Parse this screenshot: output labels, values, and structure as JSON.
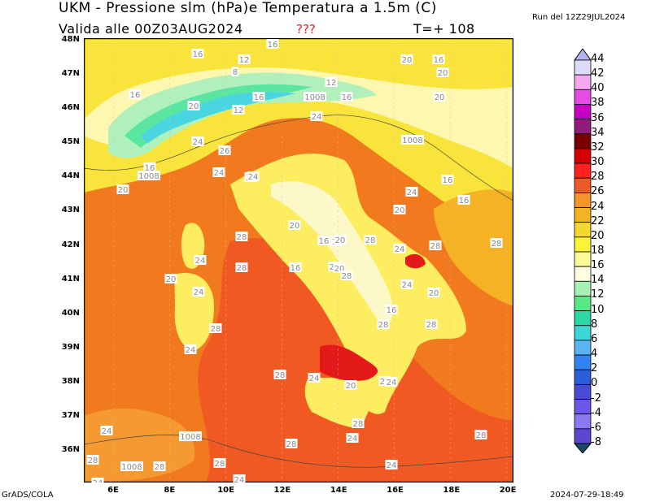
{
  "header": {
    "title": "UKM - Pressione slm (hPa)e Temperatura a 1.5m (C)",
    "validity": "Valida alle 00Z03AUG2024",
    "flag": "???",
    "forecast_step": "T=+ 108",
    "run": "Run del 12Z29JUL2024"
  },
  "footer": {
    "software": "GrADS/COLA",
    "timestamp": "2024-07-29-18:49"
  },
  "map": {
    "lat_ticks": [
      "48N",
      "47N",
      "46N",
      "45N",
      "44N",
      "43N",
      "42N",
      "41N",
      "40N",
      "39N",
      "38N",
      "37N",
      "36N"
    ],
    "lon_ticks": [
      "6E",
      "8E",
      "10E",
      "12E",
      "14E",
      "16E",
      "18E",
      "20E"
    ],
    "contour_labels": [
      {
        "t": "16"
      },
      {
        "t": "12"
      },
      {
        "t": "8"
      },
      {
        "t": "16"
      },
      {
        "t": "12"
      },
      {
        "t": "16"
      },
      {
        "t": "1008"
      },
      {
        "t": "16"
      },
      {
        "t": "12"
      },
      {
        "t": "16"
      },
      {
        "t": "20"
      },
      {
        "t": "24"
      },
      {
        "t": "20"
      },
      {
        "t": "16"
      },
      {
        "t": "20"
      },
      {
        "t": "20"
      },
      {
        "t": "1008"
      },
      {
        "t": "24"
      },
      {
        "t": "20"
      },
      {
        "t": "16"
      },
      {
        "t": "16"
      },
      {
        "t": "24"
      },
      {
        "t": "26"
      },
      {
        "t": "16"
      },
      {
        "t": "1008"
      },
      {
        "t": "20"
      },
      {
        "t": "24"
      },
      {
        "t": "20"
      },
      {
        "t": "24"
      },
      {
        "t": "20"
      },
      {
        "t": "16"
      },
      {
        "t": "16"
      },
      {
        "t": "20"
      },
      {
        "t": "28"
      },
      {
        "t": "20"
      },
      {
        "t": "16"
      },
      {
        "t": "28"
      },
      {
        "t": "28"
      },
      {
        "t": "24"
      },
      {
        "t": "20"
      },
      {
        "t": "24"
      },
      {
        "t": "20"
      },
      {
        "t": "28"
      },
      {
        "t": "24"
      },
      {
        "t": "28"
      },
      {
        "t": "24"
      },
      {
        "t": "20"
      },
      {
        "t": "28"
      },
      {
        "t": "16"
      },
      {
        "t": "28"
      },
      {
        "t": "28"
      },
      {
        "t": "28"
      },
      {
        "t": "24"
      },
      {
        "t": "28"
      },
      {
        "t": "24"
      },
      {
        "t": "20"
      },
      {
        "t": "24"
      },
      {
        "t": "24"
      },
      {
        "t": "28"
      },
      {
        "t": "24"
      },
      {
        "t": "24"
      },
      {
        "t": "1008"
      },
      {
        "t": "28"
      },
      {
        "t": "28"
      },
      {
        "t": "28"
      },
      {
        "t": "24"
      },
      {
        "t": "24"
      },
      {
        "t": "28"
      },
      {
        "t": "1008"
      },
      {
        "t": "28"
      },
      {
        "t": "24"
      }
    ]
  },
  "colorbar": {
    "labels": [
      "44",
      "42",
      "40",
      "38",
      "36",
      "34",
      "32",
      "30",
      "28",
      "26",
      "24",
      "22",
      "20",
      "18",
      "16",
      "14",
      "12",
      "10",
      "8",
      "6",
      "4",
      "2",
      "0",
      "-2",
      "-4",
      "-6",
      "-8"
    ],
    "colors": [
      "#dcdcf8",
      "#f5a8f2",
      "#e84ae6",
      "#c500c5",
      "#8e1c7a",
      "#7a0000",
      "#d40000",
      "#ff2020",
      "#f05a28",
      "#f59428",
      "#f4b224",
      "#f4d82e",
      "#f8f43c",
      "#fafa96",
      "#fefee0",
      "#a8f0b4",
      "#5ae886",
      "#2ed8a6",
      "#3cd6d6",
      "#5ab4f4",
      "#3282f4",
      "#2c5edc",
      "#4a4ad8",
      "#6a56e8",
      "#8a7af0",
      "#5a46d0"
    ],
    "top_color": "#b4b4f4",
    "bottom_color": "#1a4a6a"
  }
}
